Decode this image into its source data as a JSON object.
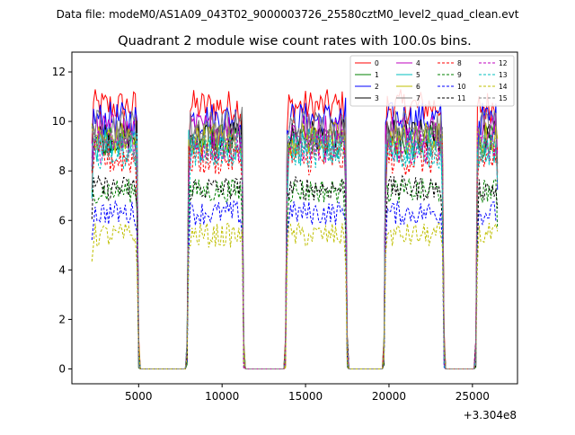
{
  "suptitle": "Data file: modeM0/AS1A09_043T02_9000003726_25580cztM0_level2_quad_clean.evt",
  "chart_data": {
    "type": "line",
    "title": "Quadrant 2 module wise count rates with 100.0s bins.",
    "xlabel": "",
    "ylabel": "",
    "x_offset_label": "+3.304e8",
    "x_offset": 330400000,
    "xlim": [
      1000,
      27700
    ],
    "ylim": [
      -0.6,
      12.8
    ],
    "xticks": [
      5000,
      10000,
      15000,
      20000,
      25000
    ],
    "yticks": [
      0,
      2,
      4,
      6,
      8,
      10,
      12
    ],
    "grid": false,
    "legend_position": "top-right",
    "bin_size_s": 100,
    "segments": [
      {
        "start": 2200,
        "end": 4900
      },
      {
        "start": 8000,
        "end": 11200
      },
      {
        "start": 13900,
        "end": 17400
      },
      {
        "start": 19800,
        "end": 23200
      },
      {
        "start": 25300,
        "end": 26500
      }
    ],
    "gaps_value": 0,
    "series": [
      {
        "name": "0",
        "color": "#ff0000",
        "dash": "solid",
        "mean": 10.6
      },
      {
        "name": "1",
        "color": "#008000",
        "dash": "solid",
        "mean": 9.2
      },
      {
        "name": "2",
        "color": "#0000ff",
        "dash": "solid",
        "mean": 10.1
      },
      {
        "name": "3",
        "color": "#000000",
        "dash": "solid",
        "mean": 9.4
      },
      {
        "name": "4",
        "color": "#bf00bf",
        "dash": "solid",
        "mean": 9.7
      },
      {
        "name": "5",
        "color": "#00bfbf",
        "dash": "solid",
        "mean": 9.0
      },
      {
        "name": "6",
        "color": "#bfbf00",
        "dash": "solid",
        "mean": 9.3
      },
      {
        "name": "7",
        "color": "#808080",
        "dash": "solid",
        "mean": 9.8
      },
      {
        "name": "8",
        "color": "#ff0000",
        "dash": "dashed",
        "mean": 8.5
      },
      {
        "name": "9",
        "color": "#008000",
        "dash": "dashed",
        "mean": 7.2
      },
      {
        "name": "10",
        "color": "#0000ff",
        "dash": "dashed",
        "mean": 6.3
      },
      {
        "name": "11",
        "color": "#000000",
        "dash": "dashed",
        "mean": 7.3
      },
      {
        "name": "12",
        "color": "#bf00bf",
        "dash": "dashed",
        "mean": 9.0
      },
      {
        "name": "13",
        "color": "#00bfbf",
        "dash": "dashed",
        "mean": 8.8
      },
      {
        "name": "14",
        "color": "#bfbf00",
        "dash": "dashed",
        "mean": 5.4
      },
      {
        "name": "15",
        "color": "#808080",
        "dash": "dashed",
        "mean": 9.1
      }
    ]
  }
}
